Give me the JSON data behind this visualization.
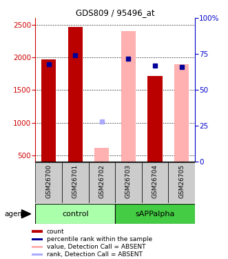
{
  "title": "GDS809 / 95496_at",
  "samples": [
    "GSM26700",
    "GSM26701",
    "GSM26702",
    "GSM26703",
    "GSM26704",
    "GSM26705"
  ],
  "absent": [
    false,
    false,
    true,
    true,
    false,
    true
  ],
  "count_values": [
    1970,
    2470,
    null,
    null,
    1720,
    null
  ],
  "absent_values": [
    null,
    null,
    620,
    2400,
    null,
    1890
  ],
  "rank_pct": [
    68,
    74,
    null,
    72,
    67,
    66
  ],
  "absent_rank_pct": [
    null,
    null,
    28,
    null,
    null,
    null
  ],
  "ylim_left": [
    400,
    2600
  ],
  "ylim_right": [
    0,
    100
  ],
  "yticks_left": [
    500,
    1000,
    1500,
    2000,
    2500
  ],
  "yticks_right": [
    0,
    25,
    50,
    75,
    100
  ],
  "count_color": "#bb0000",
  "absent_count_color": "#ffb0b0",
  "rank_color": "#000099",
  "absent_rank_color": "#aaaaff",
  "control_color": "#aaffaa",
  "sAPP_color": "#44cc44",
  "left_axis_color": "#cc0000",
  "right_axis_color": "#0000cc"
}
